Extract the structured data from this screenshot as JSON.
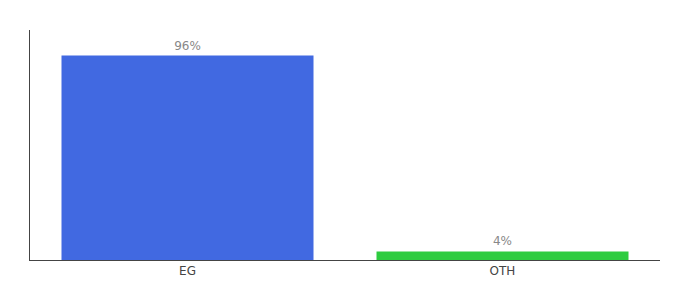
{
  "chart_data": {
    "type": "bar",
    "categories": [
      "EG",
      "OTH"
    ],
    "values": [
      96,
      4
    ],
    "value_labels": [
      "96%",
      "4%"
    ],
    "colors": [
      "#4169e1",
      "#2ecc40"
    ],
    "ylim": [
      0,
      108
    ],
    "data_labels": true,
    "tick_labels": "x",
    "grid": false
  }
}
